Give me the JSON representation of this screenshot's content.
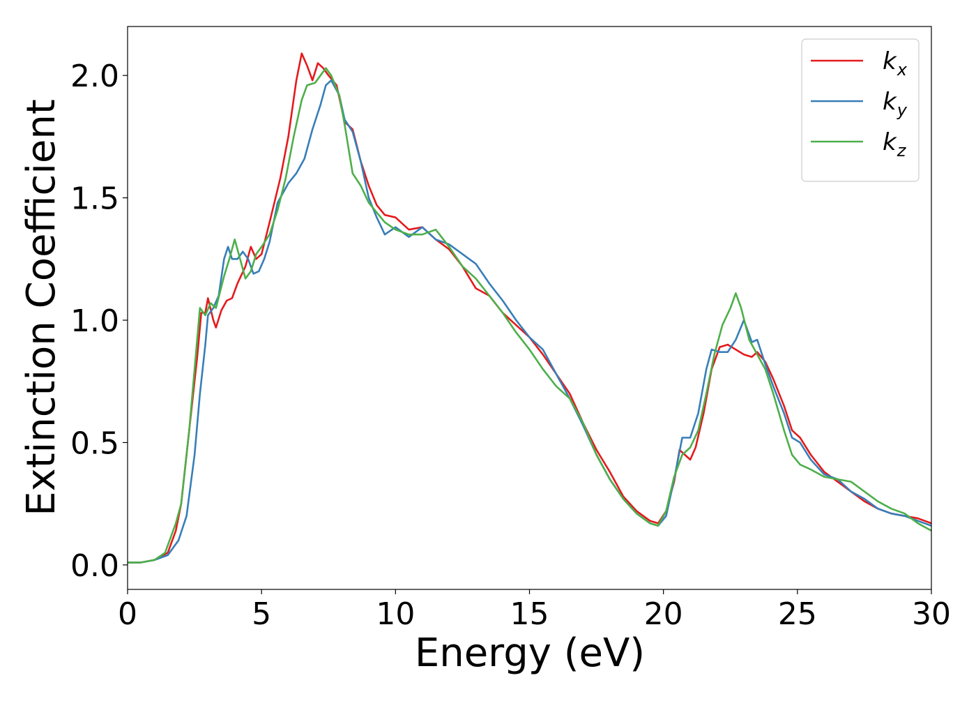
{
  "chart_data": {
    "type": "line",
    "title": "",
    "xlabel": "Energy (eV)",
    "ylabel": "Extinction Coefficient",
    "xlim": [
      0,
      30
    ],
    "ylim": [
      -0.1,
      2.2
    ],
    "xticks": [
      0,
      5,
      10,
      15,
      20,
      25,
      30
    ],
    "xtick_labels": [
      "0",
      "5",
      "10",
      "15",
      "20",
      "25",
      "30"
    ],
    "yticks": [
      0.0,
      0.5,
      1.0,
      1.5,
      2.0
    ],
    "ytick_labels": [
      "0.0",
      "0.5",
      "1.0",
      "1.5",
      "2.0"
    ],
    "grid": false,
    "legend_position": "top-right",
    "series": [
      {
        "name": "k_x",
        "label_main": "k",
        "label_sub": "x",
        "color": "#e41a1c",
        "points": [
          [
            0,
            0.01
          ],
          [
            0.2,
            0.01
          ],
          [
            0.5,
            0.01
          ],
          [
            1.0,
            0.02
          ],
          [
            1.5,
            0.05
          ],
          [
            1.8,
            0.14
          ],
          [
            2.0,
            0.25
          ],
          [
            2.2,
            0.45
          ],
          [
            2.4,
            0.65
          ],
          [
            2.6,
            0.85
          ],
          [
            2.75,
            1.03
          ],
          [
            2.9,
            1.03
          ],
          [
            3.0,
            1.09
          ],
          [
            3.2,
            1.0
          ],
          [
            3.3,
            0.97
          ],
          [
            3.5,
            1.04
          ],
          [
            3.7,
            1.08
          ],
          [
            3.9,
            1.09
          ],
          [
            4.1,
            1.15
          ],
          [
            4.4,
            1.22
          ],
          [
            4.6,
            1.3
          ],
          [
            4.8,
            1.25
          ],
          [
            5.0,
            1.27
          ],
          [
            5.3,
            1.4
          ],
          [
            5.7,
            1.58
          ],
          [
            6.0,
            1.75
          ],
          [
            6.3,
            1.98
          ],
          [
            6.5,
            2.09
          ],
          [
            6.7,
            2.04
          ],
          [
            6.9,
            1.98
          ],
          [
            7.1,
            2.05
          ],
          [
            7.3,
            2.03
          ],
          [
            7.5,
            2.0
          ],
          [
            7.8,
            1.96
          ],
          [
            8.1,
            1.81
          ],
          [
            8.4,
            1.78
          ],
          [
            8.7,
            1.65
          ],
          [
            9.0,
            1.55
          ],
          [
            9.3,
            1.47
          ],
          [
            9.6,
            1.43
          ],
          [
            10.0,
            1.42
          ],
          [
            10.5,
            1.37
          ],
          [
            11.0,
            1.38
          ],
          [
            11.5,
            1.33
          ],
          [
            12.0,
            1.29
          ],
          [
            12.5,
            1.22
          ],
          [
            13.0,
            1.13
          ],
          [
            13.5,
            1.1
          ],
          [
            14.0,
            1.03
          ],
          [
            14.5,
            0.98
          ],
          [
            15.0,
            0.93
          ],
          [
            15.5,
            0.86
          ],
          [
            16.0,
            0.78
          ],
          [
            16.5,
            0.7
          ],
          [
            17.0,
            0.58
          ],
          [
            17.5,
            0.47
          ],
          [
            18.0,
            0.38
          ],
          [
            18.5,
            0.28
          ],
          [
            19.0,
            0.22
          ],
          [
            19.5,
            0.18
          ],
          [
            19.8,
            0.17
          ],
          [
            20.1,
            0.22
          ],
          [
            20.4,
            0.34
          ],
          [
            20.6,
            0.47
          ],
          [
            20.8,
            0.45
          ],
          [
            21.0,
            0.43
          ],
          [
            21.2,
            0.48
          ],
          [
            21.5,
            0.62
          ],
          [
            21.8,
            0.8
          ],
          [
            22.1,
            0.89
          ],
          [
            22.4,
            0.9
          ],
          [
            22.7,
            0.88
          ],
          [
            23.0,
            0.86
          ],
          [
            23.3,
            0.85
          ],
          [
            23.5,
            0.87
          ],
          [
            23.8,
            0.83
          ],
          [
            24.1,
            0.76
          ],
          [
            24.5,
            0.65
          ],
          [
            24.8,
            0.55
          ],
          [
            25.1,
            0.52
          ],
          [
            25.5,
            0.45
          ],
          [
            26.0,
            0.38
          ],
          [
            26.5,
            0.34
          ],
          [
            27.0,
            0.3
          ],
          [
            27.5,
            0.26
          ],
          [
            28.0,
            0.23
          ],
          [
            28.5,
            0.21
          ],
          [
            29.0,
            0.2
          ],
          [
            29.5,
            0.19
          ],
          [
            30.0,
            0.17
          ]
        ]
      },
      {
        "name": "k_y",
        "label_main": "k",
        "label_sub": "y",
        "color": "#377eb8",
        "points": [
          [
            0,
            0.01
          ],
          [
            0.2,
            0.01
          ],
          [
            0.5,
            0.01
          ],
          [
            1.0,
            0.02
          ],
          [
            1.5,
            0.04
          ],
          [
            1.9,
            0.1
          ],
          [
            2.2,
            0.2
          ],
          [
            2.5,
            0.45
          ],
          [
            2.7,
            0.7
          ],
          [
            2.9,
            0.9
          ],
          [
            3.0,
            1.02
          ],
          [
            3.2,
            1.05
          ],
          [
            3.4,
            1.1
          ],
          [
            3.6,
            1.25
          ],
          [
            3.75,
            1.3
          ],
          [
            3.9,
            1.25
          ],
          [
            4.1,
            1.25
          ],
          [
            4.3,
            1.28
          ],
          [
            4.5,
            1.25
          ],
          [
            4.7,
            1.19
          ],
          [
            4.9,
            1.2
          ],
          [
            5.1,
            1.25
          ],
          [
            5.3,
            1.32
          ],
          [
            5.6,
            1.48
          ],
          [
            6.0,
            1.56
          ],
          [
            6.3,
            1.6
          ],
          [
            6.6,
            1.66
          ],
          [
            6.9,
            1.78
          ],
          [
            7.2,
            1.88
          ],
          [
            7.4,
            1.96
          ],
          [
            7.6,
            1.98
          ],
          [
            7.9,
            1.92
          ],
          [
            8.1,
            1.82
          ],
          [
            8.4,
            1.77
          ],
          [
            8.7,
            1.65
          ],
          [
            9.0,
            1.5
          ],
          [
            9.3,
            1.42
          ],
          [
            9.6,
            1.35
          ],
          [
            10.0,
            1.38
          ],
          [
            10.5,
            1.34
          ],
          [
            11.0,
            1.38
          ],
          [
            11.5,
            1.33
          ],
          [
            12.0,
            1.31
          ],
          [
            12.5,
            1.27
          ],
          [
            13.0,
            1.23
          ],
          [
            13.5,
            1.15
          ],
          [
            14.0,
            1.08
          ],
          [
            14.5,
            1.0
          ],
          [
            15.0,
            0.93
          ],
          [
            15.5,
            0.88
          ],
          [
            16.0,
            0.78
          ],
          [
            16.5,
            0.68
          ],
          [
            17.0,
            0.57
          ],
          [
            17.5,
            0.45
          ],
          [
            18.0,
            0.35
          ],
          [
            18.5,
            0.27
          ],
          [
            19.0,
            0.21
          ],
          [
            19.5,
            0.17
          ],
          [
            19.8,
            0.16
          ],
          [
            20.1,
            0.2
          ],
          [
            20.4,
            0.35
          ],
          [
            20.7,
            0.52
          ],
          [
            21.0,
            0.52
          ],
          [
            21.3,
            0.62
          ],
          [
            21.6,
            0.8
          ],
          [
            21.8,
            0.88
          ],
          [
            22.1,
            0.87
          ],
          [
            22.4,
            0.87
          ],
          [
            22.7,
            0.92
          ],
          [
            23.0,
            1.0
          ],
          [
            23.3,
            0.91
          ],
          [
            23.5,
            0.92
          ],
          [
            23.8,
            0.82
          ],
          [
            24.1,
            0.73
          ],
          [
            24.5,
            0.62
          ],
          [
            24.8,
            0.52
          ],
          [
            25.1,
            0.5
          ],
          [
            25.5,
            0.43
          ],
          [
            26.0,
            0.37
          ],
          [
            26.5,
            0.35
          ],
          [
            27.0,
            0.3
          ],
          [
            27.5,
            0.27
          ],
          [
            28.0,
            0.23
          ],
          [
            28.5,
            0.21
          ],
          [
            29.0,
            0.2
          ],
          [
            29.5,
            0.18
          ],
          [
            30.0,
            0.16
          ]
        ]
      },
      {
        "name": "k_z",
        "label_main": "k",
        "label_sub": "z",
        "color": "#4daf4a",
        "points": [
          [
            0,
            0.01
          ],
          [
            0.2,
            0.01
          ],
          [
            0.5,
            0.01
          ],
          [
            1.0,
            0.02
          ],
          [
            1.4,
            0.05
          ],
          [
            1.8,
            0.17
          ],
          [
            2.0,
            0.25
          ],
          [
            2.3,
            0.55
          ],
          [
            2.5,
            0.8
          ],
          [
            2.7,
            1.05
          ],
          [
            2.9,
            1.02
          ],
          [
            3.1,
            1.07
          ],
          [
            3.3,
            1.05
          ],
          [
            3.6,
            1.18
          ],
          [
            3.8,
            1.25
          ],
          [
            4.0,
            1.33
          ],
          [
            4.2,
            1.25
          ],
          [
            4.4,
            1.17
          ],
          [
            4.6,
            1.2
          ],
          [
            4.8,
            1.27
          ],
          [
            5.0,
            1.3
          ],
          [
            5.3,
            1.35
          ],
          [
            5.6,
            1.45
          ],
          [
            5.9,
            1.58
          ],
          [
            6.2,
            1.75
          ],
          [
            6.5,
            1.9
          ],
          [
            6.7,
            1.96
          ],
          [
            7.0,
            1.97
          ],
          [
            7.2,
            2.0
          ],
          [
            7.4,
            2.03
          ],
          [
            7.6,
            2.0
          ],
          [
            7.9,
            1.92
          ],
          [
            8.1,
            1.8
          ],
          [
            8.4,
            1.6
          ],
          [
            8.7,
            1.55
          ],
          [
            9.0,
            1.48
          ],
          [
            9.3,
            1.44
          ],
          [
            9.6,
            1.4
          ],
          [
            10.0,
            1.37
          ],
          [
            10.5,
            1.35
          ],
          [
            11.0,
            1.35
          ],
          [
            11.5,
            1.37
          ],
          [
            12.0,
            1.3
          ],
          [
            12.5,
            1.22
          ],
          [
            13.0,
            1.17
          ],
          [
            13.5,
            1.1
          ],
          [
            14.0,
            1.03
          ],
          [
            14.5,
            0.95
          ],
          [
            15.0,
            0.88
          ],
          [
            15.5,
            0.8
          ],
          [
            16.0,
            0.73
          ],
          [
            16.5,
            0.68
          ],
          [
            17.0,
            0.58
          ],
          [
            17.5,
            0.45
          ],
          [
            18.0,
            0.35
          ],
          [
            18.5,
            0.27
          ],
          [
            19.0,
            0.21
          ],
          [
            19.5,
            0.17
          ],
          [
            19.8,
            0.16
          ],
          [
            20.1,
            0.22
          ],
          [
            20.4,
            0.36
          ],
          [
            20.7,
            0.45
          ],
          [
            21.0,
            0.48
          ],
          [
            21.3,
            0.55
          ],
          [
            21.6,
            0.7
          ],
          [
            21.9,
            0.86
          ],
          [
            22.2,
            0.98
          ],
          [
            22.5,
            1.05
          ],
          [
            22.7,
            1.11
          ],
          [
            22.9,
            1.05
          ],
          [
            23.2,
            0.92
          ],
          [
            23.5,
            0.86
          ],
          [
            23.8,
            0.8
          ],
          [
            24.1,
            0.7
          ],
          [
            24.5,
            0.55
          ],
          [
            24.8,
            0.45
          ],
          [
            25.1,
            0.41
          ],
          [
            25.5,
            0.39
          ],
          [
            26.0,
            0.36
          ],
          [
            26.5,
            0.35
          ],
          [
            27.0,
            0.34
          ],
          [
            27.5,
            0.3
          ],
          [
            28.0,
            0.26
          ],
          [
            28.5,
            0.23
          ],
          [
            29.0,
            0.21
          ],
          [
            29.5,
            0.17
          ],
          [
            30.0,
            0.14
          ]
        ]
      }
    ]
  }
}
